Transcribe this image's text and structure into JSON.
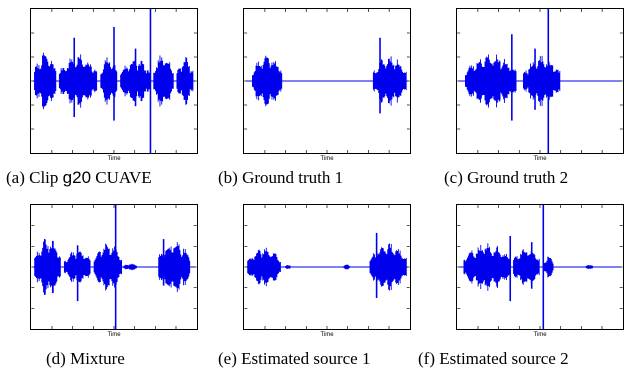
{
  "figure": {
    "panels": [
      {
        "id": "a",
        "caption_prefix": "(a) Clip ",
        "caption_code": "g20",
        "caption_suffix": " CUAVE",
        "xlabel": "Time",
        "signal": "clip"
      },
      {
        "id": "b",
        "caption_prefix": "(b) Ground truth 1",
        "caption_code": "",
        "caption_suffix": "",
        "xlabel": "Time",
        "signal": "gt1"
      },
      {
        "id": "c",
        "caption_prefix": "(c) Ground truth 2",
        "caption_code": "",
        "caption_suffix": "",
        "xlabel": "Time",
        "signal": "gt2"
      },
      {
        "id": "d",
        "caption_prefix": "(d) Mixture",
        "caption_code": "",
        "caption_suffix": "",
        "xlabel": "Time",
        "signal": "mix"
      },
      {
        "id": "e",
        "caption_prefix": "(e) Estimated source 1",
        "caption_code": "",
        "caption_suffix": "",
        "xlabel": "Time",
        "signal": "est1"
      },
      {
        "id": "f",
        "caption_prefix": "(f) Estimated source 2",
        "caption_code": "",
        "caption_suffix": "",
        "xlabel": "Time",
        "signal": "est2"
      }
    ],
    "colors": {
      "signal": "#0000ee",
      "axis": "#000000"
    }
  }
}
